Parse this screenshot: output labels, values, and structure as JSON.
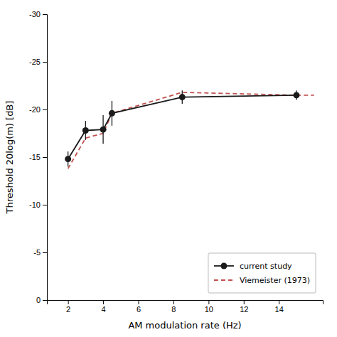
{
  "chart_data": {
    "type": "line",
    "xlabel": "AM modulation rate (Hz)",
    "ylabel": "Threshold 20log(m) [dB]",
    "series": [
      {
        "name": "current study",
        "color": "#1a1a1a",
        "line_style": "solid",
        "marker": "circle",
        "x": [
          2,
          3,
          4,
          4.5,
          8.5,
          15
        ],
        "values": [
          -14.8,
          -17.8,
          -17.9,
          -19.6,
          -21.3,
          -21.5
        ],
        "errors": [
          0.8,
          1.0,
          1.5,
          1.3,
          0.7,
          0.5
        ]
      },
      {
        "name": "Viemeister (1973)",
        "color": "#c0504d",
        "line_style": "dashed",
        "x": [
          2,
          3,
          4,
          4.5,
          8.5,
          15,
          16
        ],
        "values": [
          -13.8,
          -17.0,
          -17.5,
          -19.6,
          -21.8,
          -21.5,
          -21.5
        ]
      }
    ],
    "xlim": [
      0.8,
      16.5
    ],
    "ylim": [
      0,
      -30
    ],
    "xticks": [
      2,
      4,
      6,
      8,
      10,
      12,
      14
    ],
    "yticks": [
      0,
      -5,
      -10,
      -15,
      -20,
      -25,
      -30
    ],
    "grid": false,
    "legend": "lower right"
  }
}
